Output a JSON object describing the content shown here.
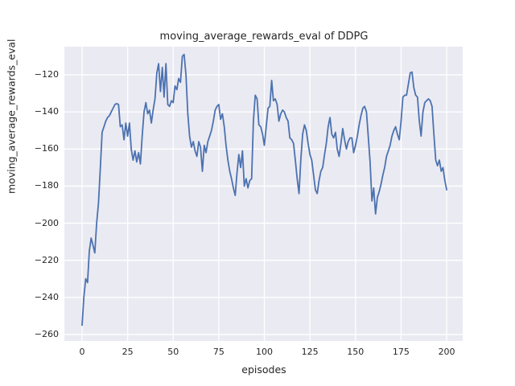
{
  "figure": {
    "title": "moving_average_rewards_eval of DDPG",
    "xlabel": "episodes",
    "ylabel": "moving_average_rewards_eval"
  },
  "colors": {
    "figure_background": "#ffffff",
    "plot_background": "#eaeaf2",
    "grid": "#ffffff",
    "line": "#4c72b0",
    "text": "#262626"
  },
  "chart_data": {
    "type": "line",
    "title": "moving_average_rewards_eval of DDPG",
    "xlabel": "episodes",
    "ylabel": "moving_average_rewards_eval",
    "legend": null,
    "grid": true,
    "x_ticks": [
      0,
      25,
      50,
      75,
      100,
      125,
      150,
      175,
      200
    ],
    "x_tick_labels": [
      "0",
      "25",
      "50",
      "75",
      "100",
      "125",
      "150",
      "175",
      "200"
    ],
    "y_ticks": [
      -120,
      -140,
      -160,
      -180,
      -200,
      -220,
      -240,
      -260
    ],
    "y_tick_labels": [
      "−120",
      "−140",
      "−160",
      "−180",
      "−200",
      "−220",
      "−240",
      "−260"
    ],
    "xlim": [
      -9.7,
      208.8
    ],
    "ylim": [
      -263.5,
      -104.8
    ],
    "x_range": [
      0,
      200
    ],
    "x_step": 1,
    "series": [
      {
        "name": "moving_average_rewards_eval",
        "color": "#4c72b0",
        "values": [
          -255,
          -240,
          -230,
          -232,
          -215,
          -208,
          -212,
          -216,
          -200,
          -189,
          -171,
          -151,
          -148,
          -145,
          -143,
          -142,
          -140,
          -138,
          -136,
          -135.5,
          -136,
          -148,
          -147,
          -155,
          -146,
          -153,
          -146,
          -160,
          -166,
          -161,
          -167,
          -162,
          -168,
          -153,
          -140,
          -135,
          -141,
          -139,
          -146,
          -139,
          -133,
          -119,
          -114,
          -129,
          -116,
          -132,
          -114,
          -136,
          -137,
          -134,
          -135,
          -126,
          -128,
          -122,
          -124,
          -110,
          -109,
          -120,
          -141,
          -153,
          -159,
          -156,
          -161,
          -164,
          -156,
          -159,
          -172,
          -158,
          -162,
          -156,
          -153,
          -150,
          -145,
          -139,
          -137,
          -136,
          -144,
          -141,
          -148,
          -158,
          -166,
          -172,
          -176,
          -181,
          -185,
          -173,
          -163,
          -170,
          -161,
          -180,
          -176,
          -181,
          -177,
          -176,
          -145,
          -131,
          -133,
          -147,
          -148,
          -152,
          -158,
          -148,
          -138,
          -137,
          -123,
          -134,
          -133,
          -136,
          -145,
          -141,
          -139,
          -140,
          -143,
          -145,
          -154,
          -155,
          -157,
          -166,
          -176,
          -184,
          -166,
          -152,
          -147,
          -150,
          -157,
          -163,
          -166,
          -174,
          -182,
          -184,
          -177,
          -172,
          -170,
          -163,
          -157,
          -148,
          -143,
          -152,
          -154,
          -151,
          -160,
          -164,
          -157,
          -149,
          -155,
          -160,
          -156,
          -154,
          -154,
          -162,
          -158,
          -153,
          -147,
          -142,
          -138,
          -137,
          -140,
          -153,
          -167,
          -188,
          -181,
          -195,
          -186,
          -183,
          -179,
          -174,
          -170,
          -164,
          -161,
          -158,
          -153,
          -150,
          -148,
          -152,
          -155,
          -145,
          -132,
          -131,
          -131,
          -125,
          -119,
          -118.5,
          -127,
          -131,
          -132,
          -145,
          -153,
          -140,
          -135,
          -134,
          -133,
          -134,
          -137,
          -152,
          -166,
          -169,
          -166,
          -172,
          -170,
          -177,
          -182
        ]
      }
    ]
  }
}
